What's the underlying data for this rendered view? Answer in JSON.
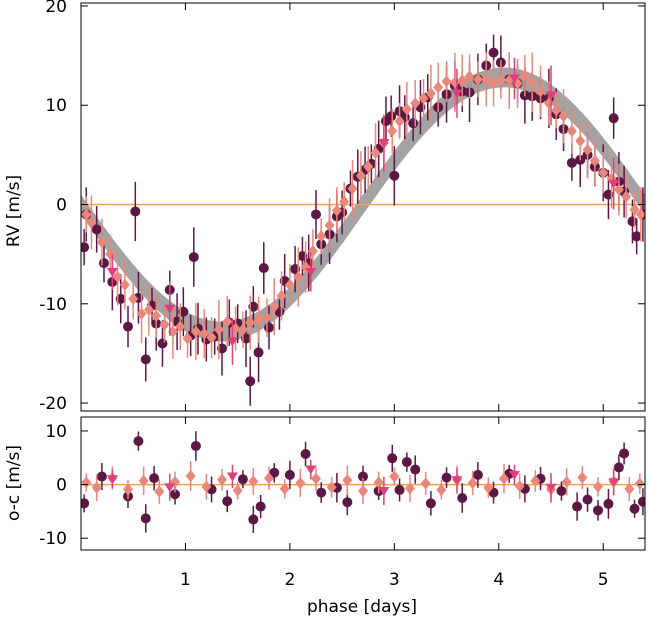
{
  "chart_data": {
    "type": "scatter",
    "x_label": "phase [days]",
    "x_range": [
      0,
      5.4
    ],
    "x_ticks": [
      1,
      2,
      3,
      4,
      5
    ],
    "colors": {
      "model_band": "#999999",
      "zero_line": "#f5a04a",
      "series_a": "#5c1845",
      "series_b": "#e8877a",
      "series_c": "#e0407a"
    },
    "model": {
      "amplitude": 12.8,
      "period": 5.4,
      "peak_phase": 4.05,
      "band_halfwidth": 1.0
    },
    "top_panel": {
      "ylabel": "RV [m/s]",
      "ylim": [
        -20.8,
        20.3
      ],
      "y_ticks": [
        20,
        10,
        0,
        -10,
        -20
      ],
      "zero_line": 0,
      "series": [
        {
          "name": "dark",
          "marker": "circle",
          "color": "#5c1845",
          "x": [
            0.03,
            0.05,
            0.15,
            0.22,
            0.3,
            0.38,
            0.45,
            0.52,
            0.55,
            0.62,
            0.68,
            0.72,
            0.78,
            0.85,
            0.92,
            0.98,
            1.05,
            1.08,
            1.12,
            1.2,
            1.28,
            1.35,
            1.42,
            1.5,
            1.58,
            1.62,
            1.65,
            1.7,
            1.75,
            1.8,
            1.9,
            1.95,
            2.05,
            2.12,
            2.18,
            2.25,
            2.3,
            2.38,
            2.45,
            2.5,
            2.58,
            2.65,
            2.72,
            2.78,
            2.85,
            2.92,
            2.97,
            3.0,
            3.05,
            3.1,
            3.18,
            3.25,
            3.32,
            3.42,
            3.5,
            3.58,
            3.65,
            3.72,
            3.8,
            3.88,
            3.95,
            4.02,
            4.1,
            4.18,
            4.25,
            4.32,
            4.4,
            4.48,
            4.55,
            4.62,
            4.7,
            4.78,
            4.85,
            4.92,
            5.0,
            5.05,
            5.1,
            5.15,
            5.2,
            5.28,
            5.32,
            5.38
          ],
          "y": [
            -4.3,
            -1.0,
            -2.5,
            -5.9,
            -7.8,
            -9.5,
            -12.3,
            -0.7,
            -9.4,
            -15.6,
            -10.2,
            -12.0,
            -14.0,
            -8.6,
            -11.8,
            -10.8,
            -13.2,
            -5.3,
            -12.5,
            -13.6,
            -13.3,
            -14.5,
            -11.9,
            -12.0,
            -13.5,
            -17.8,
            -10.3,
            -14.9,
            -6.4,
            -12.4,
            -10.8,
            -7.7,
            -6.5,
            -5.2,
            -5.9,
            -1.0,
            -4.0,
            -3.0,
            -1.2,
            -0.8,
            1.6,
            2.8,
            3.5,
            4.1,
            5.6,
            8.4,
            8.9,
            2.9,
            9.4,
            8.8,
            8.2,
            9.8,
            10.8,
            9.8,
            11.1,
            12.0,
            11.4,
            11.3,
            12.6,
            14.0,
            15.3,
            14.3,
            12.6,
            12.2,
            11.0,
            10.9,
            10.7,
            10.7,
            9.1,
            7.6,
            4.2,
            4.5,
            5.0,
            3.8,
            3.2,
            1.0,
            8.7,
            2.3,
            1.3,
            -1.7,
            -3.2,
            -1.0
          ]
        },
        {
          "name": "salmon",
          "marker": "diamond",
          "color": "#e8877a",
          "x": [
            0.05,
            0.1,
            0.2,
            0.28,
            0.35,
            0.42,
            0.5,
            0.58,
            0.65,
            0.72,
            0.8,
            0.88,
            0.95,
            1.02,
            1.1,
            1.18,
            1.25,
            1.32,
            1.4,
            1.48,
            1.55,
            1.62,
            1.7,
            1.78,
            1.85,
            1.92,
            2.0,
            2.08,
            2.15,
            2.22,
            2.3,
            2.38,
            2.45,
            2.52,
            2.6,
            2.68,
            2.75,
            2.82,
            2.9,
            2.98,
            3.05,
            3.12,
            3.2,
            3.28,
            3.35,
            3.42,
            3.5,
            3.58,
            3.65,
            3.72,
            3.8,
            3.88,
            3.95,
            4.02,
            4.1,
            4.18,
            4.25,
            4.32,
            4.4,
            4.48,
            4.55,
            4.62,
            4.7,
            4.78,
            4.85,
            4.92,
            5.0,
            5.08,
            5.15,
            5.22,
            5.3,
            5.36
          ],
          "y": [
            -1.0,
            -1.8,
            -3.8,
            -5.0,
            -7.3,
            -8.1,
            -9.5,
            -11.0,
            -10.6,
            -11.2,
            -12.1,
            -12.8,
            -12.3,
            -13.5,
            -12.8,
            -13.0,
            -13.4,
            -12.6,
            -11.8,
            -12.5,
            -12.6,
            -11.9,
            -11.6,
            -11.4,
            -10.3,
            -9.2,
            -8.1,
            -7.3,
            -6.3,
            -4.7,
            -3.2,
            -2.1,
            -0.6,
            0.3,
            1.6,
            2.9,
            3.8,
            5.2,
            6.2,
            7.4,
            8.4,
            9.6,
            10.2,
            10.7,
            11.2,
            11.8,
            12.4,
            12.3,
            12.5,
            12.9,
            12.6,
            12.6,
            12.2,
            12.6,
            12.5,
            12.2,
            13.0,
            12.3,
            11.4,
            10.2,
            9.5,
            8.9,
            7.4,
            6.4,
            5.5,
            4.4,
            3.2,
            2.6,
            1.5,
            0.8,
            -0.5,
            -1.0
          ]
        },
        {
          "name": "pink",
          "marker": "triangle-down",
          "color": "#e0407a",
          "x": [
            0.3,
            0.85,
            1.45,
            2.2,
            2.9,
            3.6,
            4.15,
            4.5,
            5.1
          ],
          "y": [
            -6.8,
            -10.5,
            -13.8,
            -6.8,
            6.2,
            11.2,
            12.7,
            11.0,
            2.1
          ]
        }
      ]
    },
    "bottom_panel": {
      "ylabel": "o-c [m/s]",
      "ylim": [
        -12.2,
        12.6
      ],
      "y_ticks": [
        10,
        0,
        -10
      ],
      "zero_line": 0,
      "series": [
        {
          "name": "dark",
          "marker": "circle",
          "color": "#5c1845",
          "x": [
            0.03,
            0.2,
            0.45,
            0.55,
            0.62,
            0.7,
            0.9,
            1.1,
            1.25,
            1.4,
            1.55,
            1.65,
            1.72,
            1.85,
            2.0,
            2.15,
            2.3,
            2.45,
            2.55,
            2.7,
            2.85,
            2.98,
            3.05,
            3.12,
            3.2,
            3.35,
            3.5,
            3.65,
            3.8,
            3.95,
            4.1,
            4.25,
            4.4,
            4.6,
            4.75,
            4.85,
            4.95,
            5.05,
            5.15,
            5.2,
            5.3,
            5.38
          ],
          "y": [
            -3.5,
            1.5,
            -2.2,
            8.1,
            -6.3,
            1.2,
            -1.8,
            7.2,
            -0.9,
            -3.1,
            1.0,
            -6.5,
            -4.1,
            2.2,
            1.8,
            5.7,
            -1.5,
            -0.6,
            -3.3,
            1.5,
            -1.2,
            4.9,
            -1.0,
            4.2,
            2.8,
            -3.5,
            1.3,
            -2.5,
            1.8,
            -1.5,
            2.0,
            -0.8,
            1.1,
            -1.2,
            -4.1,
            -2.8,
            -4.8,
            -3.6,
            3.2,
            5.8,
            -4.5,
            -3.2
          ]
        },
        {
          "name": "salmon",
          "marker": "diamond",
          "color": "#e8877a",
          "x": [
            0.05,
            0.15,
            0.3,
            0.45,
            0.6,
            0.75,
            0.9,
            1.05,
            1.2,
            1.35,
            1.5,
            1.65,
            1.8,
            1.95,
            2.1,
            2.25,
            2.4,
            2.55,
            2.7,
            2.85,
            3.0,
            3.15,
            3.3,
            3.45,
            3.6,
            3.75,
            3.9,
            4.05,
            4.2,
            4.35,
            4.5,
            4.65,
            4.8,
            4.95,
            5.1,
            5.25,
            5.35
          ],
          "y": [
            0.4,
            -0.6,
            1.2,
            -0.9,
            0.7,
            -1.3,
            0.5,
            1.6,
            -0.4,
            0.9,
            -1.1,
            0.6,
            1.2,
            -0.8,
            0.3,
            1.1,
            -0.5,
            0.8,
            -1.2,
            0.4,
            1.5,
            -0.7,
            0.2,
            -1.0,
            0.9,
            0.3,
            -0.6,
            1.1,
            -0.3,
            0.7,
            -0.9,
            0.5,
            1.3,
            -0.4,
            0.6,
            -0.8,
            0.2
          ]
        },
        {
          "name": "pink",
          "marker": "triangle-down",
          "color": "#e0407a",
          "x": [
            0.3,
            0.85,
            1.45,
            2.2,
            2.9,
            3.6,
            4.15,
            4.5,
            5.1
          ],
          "y": [
            1.0,
            -0.5,
            1.5,
            2.8,
            -1.2,
            0.8,
            1.8,
            -0.6,
            0.4
          ]
        }
      ]
    }
  }
}
